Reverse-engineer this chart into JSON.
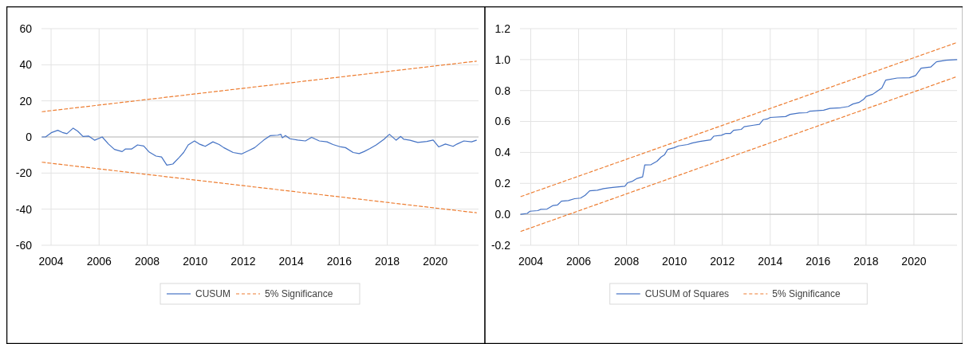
{
  "chart_data": [
    {
      "type": "line",
      "xlim": [
        2003.6,
        2021.8
      ],
      "xticks": [
        2004,
        2006,
        2008,
        2010,
        2012,
        2014,
        2016,
        2018,
        2020
      ],
      "ylim": [
        -60,
        60
      ],
      "yticks": [
        -60,
        -40,
        -20,
        0,
        20,
        40,
        60
      ],
      "grid": true,
      "legend": "bottom",
      "series": [
        {
          "name": "CUSUM",
          "color": "#4472c4",
          "line_style": "solid",
          "x": [
            2003.63,
            2003.77,
            2004.03,
            2004.28,
            2004.47,
            2004.66,
            2004.92,
            2005.11,
            2005.33,
            2005.56,
            2005.81,
            2006.13,
            2006.39,
            2006.64,
            2006.96,
            2007.09,
            2007.35,
            2007.6,
            2007.86,
            2008.09,
            2008.37,
            2008.6,
            2008.82,
            2009.07,
            2009.33,
            2009.52,
            2009.71,
            2009.97,
            2010.17,
            2010.42,
            2010.74,
            2011,
            2011.19,
            2011.58,
            2011.94,
            2012.22,
            2012.48,
            2012.86,
            2013.12,
            2013.44,
            2013.57,
            2013.63,
            2013.76,
            2013.95,
            2014.27,
            2014.59,
            2014.85,
            2015.17,
            2015.49,
            2015.74,
            2016.06,
            2016.26,
            2016.58,
            2016.83,
            2017.03,
            2017.28,
            2017.54,
            2017.86,
            2018.09,
            2018.37,
            2018.56,
            2018.69,
            2018.95,
            2019.27,
            2019.65,
            2019.91,
            2020.14,
            2020.42,
            2020.74,
            2020.91,
            2021.19,
            2021.51,
            2021.71
          ],
          "values": [
            0,
            0,
            2.5,
            3.7,
            2.5,
            1.8,
            4.9,
            3.2,
            0.3,
            0.5,
            -1.8,
            0,
            -3.9,
            -6.9,
            -8.1,
            -6.7,
            -6.7,
            -4.4,
            -5,
            -8.4,
            -10.6,
            -11.1,
            -15.6,
            -15,
            -11.4,
            -8.6,
            -4.4,
            -2.2,
            -3.9,
            -5.2,
            -2.7,
            -4.2,
            -5.9,
            -8.6,
            -9.4,
            -7.6,
            -5.9,
            -1.7,
            0.7,
            1,
            1.5,
            -0.5,
            0.8,
            -1,
            -1.7,
            -2.2,
            -0.2,
            -2.2,
            -2.7,
            -4.2,
            -5.5,
            -5.9,
            -8.6,
            -9.2,
            -8.1,
            -6.4,
            -4.4,
            -1.3,
            1.5,
            -1.8,
            0.3,
            -1.3,
            -1.8,
            -3,
            -2.5,
            -1.7,
            -5.5,
            -3.9,
            -5.2,
            -3.9,
            -2.2,
            -2.7,
            -1.8
          ]
        },
        {
          "name": "5% Significance",
          "color": "#ed7d31",
          "line_style": "dashed",
          "x": [
            2003.63,
            2021.71
          ],
          "values": [
            14,
            42
          ]
        },
        {
          "color": "#ed7d31",
          "line_style": "dashed",
          "x": [
            2003.63,
            2021.71
          ],
          "values": [
            -14,
            -42
          ]
        }
      ]
    },
    {
      "type": "line",
      "xlim": [
        2003.55,
        2021.8
      ],
      "xticks": [
        2004,
        2006,
        2008,
        2010,
        2012,
        2014,
        2016,
        2018,
        2020
      ],
      "ylim": [
        -0.2,
        1.2
      ],
      "yticks": [
        -0.2,
        {
          "value": 0,
          "label": "0.0"
        },
        0.2,
        0.4,
        0.6,
        0.8,
        {
          "value": 1,
          "label": "1.0"
        },
        1.2
      ],
      "grid": true,
      "legend": "bottom",
      "series": [
        {
          "name": "CUSUM of Squares",
          "color": "#4472c4",
          "line_style": "solid",
          "x": [
            2003.59,
            2003.85,
            2003.97,
            2004.29,
            2004.42,
            2004.68,
            2004.93,
            2005.12,
            2005.28,
            2005.57,
            2005.83,
            2006.08,
            2006.27,
            2006.46,
            2006.78,
            2007.04,
            2007.42,
            2007.93,
            2008.04,
            2008.25,
            2008.44,
            2008.67,
            2008.76,
            2009.02,
            2009.27,
            2009.44,
            2009.59,
            2009.72,
            2009.98,
            2010.17,
            2010.55,
            2010.74,
            2011.06,
            2011.51,
            2011.64,
            2011.96,
            2012.15,
            2012.34,
            2012.47,
            2012.79,
            2012.91,
            2013.3,
            2013.55,
            2013.71,
            2013.87,
            2014,
            2014.64,
            2014.83,
            2015.21,
            2015.53,
            2015.66,
            2016.23,
            2016.49,
            2016.94,
            2017.26,
            2017.45,
            2017.7,
            2017.9,
            2018,
            2018.28,
            2018.43,
            2018.66,
            2018.82,
            2019.3,
            2019.81,
            2020.07,
            2020.3,
            2020.7,
            2020.94,
            2021.34,
            2021.79
          ],
          "values": [
            0,
            0.006,
            0.02,
            0.024,
            0.032,
            0.034,
            0.057,
            0.061,
            0.085,
            0.089,
            0.101,
            0.105,
            0.123,
            0.152,
            0.156,
            0.166,
            0.174,
            0.182,
            0.204,
            0.214,
            0.232,
            0.242,
            0.319,
            0.321,
            0.343,
            0.37,
            0.386,
            0.42,
            0.43,
            0.442,
            0.451,
            0.461,
            0.471,
            0.481,
            0.505,
            0.511,
            0.523,
            0.523,
            0.543,
            0.549,
            0.566,
            0.576,
            0.582,
            0.612,
            0.616,
            0.626,
            0.632,
            0.646,
            0.655,
            0.657,
            0.667,
            0.673,
            0.685,
            0.689,
            0.697,
            0.713,
            0.723,
            0.743,
            0.762,
            0.776,
            0.792,
            0.816,
            0.867,
            0.881,
            0.883,
            0.897,
            0.945,
            0.952,
            0.986,
            0.996,
            1
          ]
        },
        {
          "name": "5% Significance",
          "color": "#ed7d31",
          "line_style": "dashed",
          "x": [
            2003.59,
            2021.79
          ],
          "values": [
            0.115,
            1.11
          ]
        },
        {
          "color": "#ed7d31",
          "line_style": "dashed",
          "x": [
            2003.59,
            2021.79
          ],
          "values": [
            -0.11,
            0.89
          ]
        }
      ]
    }
  ]
}
